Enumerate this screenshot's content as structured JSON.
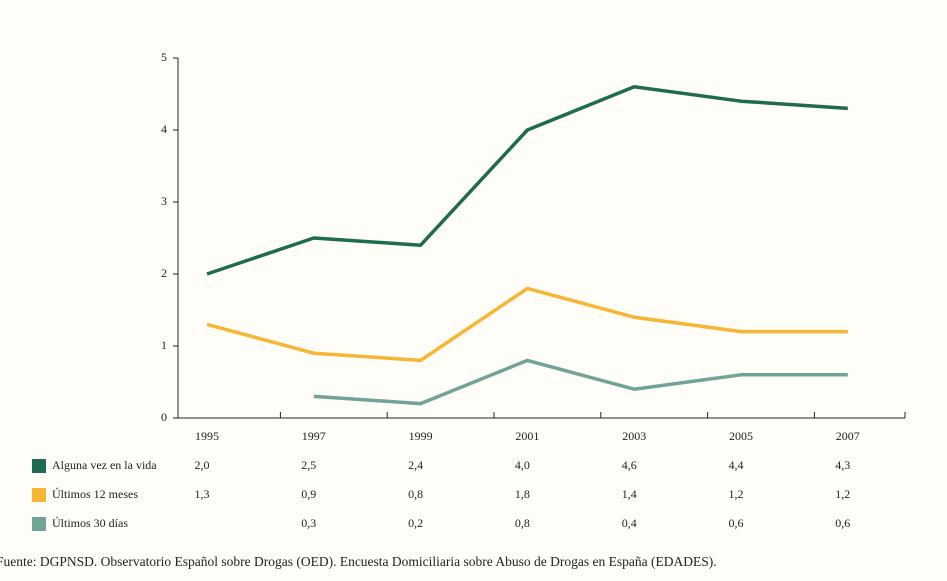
{
  "chart_data": {
    "type": "line",
    "categories": [
      "1995",
      "1997",
      "1999",
      "2001",
      "2003",
      "2005",
      "2007"
    ],
    "series": [
      {
        "name": "Alguna vez en la vida",
        "color": "#1f6b4f",
        "values": [
          2.0,
          2.5,
          2.4,
          4.0,
          4.6,
          4.4,
          4.3
        ],
        "value_labels": [
          "2,0",
          "2,5",
          "2,4",
          "4,0",
          "4,6",
          "4,4",
          "4,3"
        ]
      },
      {
        "name": "Últimos 12 meses",
        "color": "#f8b533",
        "values": [
          1.3,
          0.9,
          0.8,
          1.8,
          1.4,
          1.2,
          1.2
        ],
        "value_labels": [
          "1,3",
          "0,9",
          "0,8",
          "1,8",
          "1,4",
          "1,2",
          "1,2"
        ]
      },
      {
        "name": "Últimos 30 días",
        "color": "#6fa497",
        "values": [
          null,
          0.3,
          0.2,
          0.8,
          0.4,
          0.6,
          0.6
        ],
        "value_labels": [
          null,
          "0,3",
          "0,2",
          "0,8",
          "0,4",
          "0,6",
          "0,6"
        ]
      }
    ],
    "ylim": [
      0,
      5
    ],
    "yticks": [
      0,
      1,
      2,
      3,
      4,
      5
    ],
    "source": "Fuente: DGPNSD. Observatorio Español sobre Drogas (OED). Encuesta Domiciliaria sobre Abuso de Drogas en España (EDADES)."
  }
}
